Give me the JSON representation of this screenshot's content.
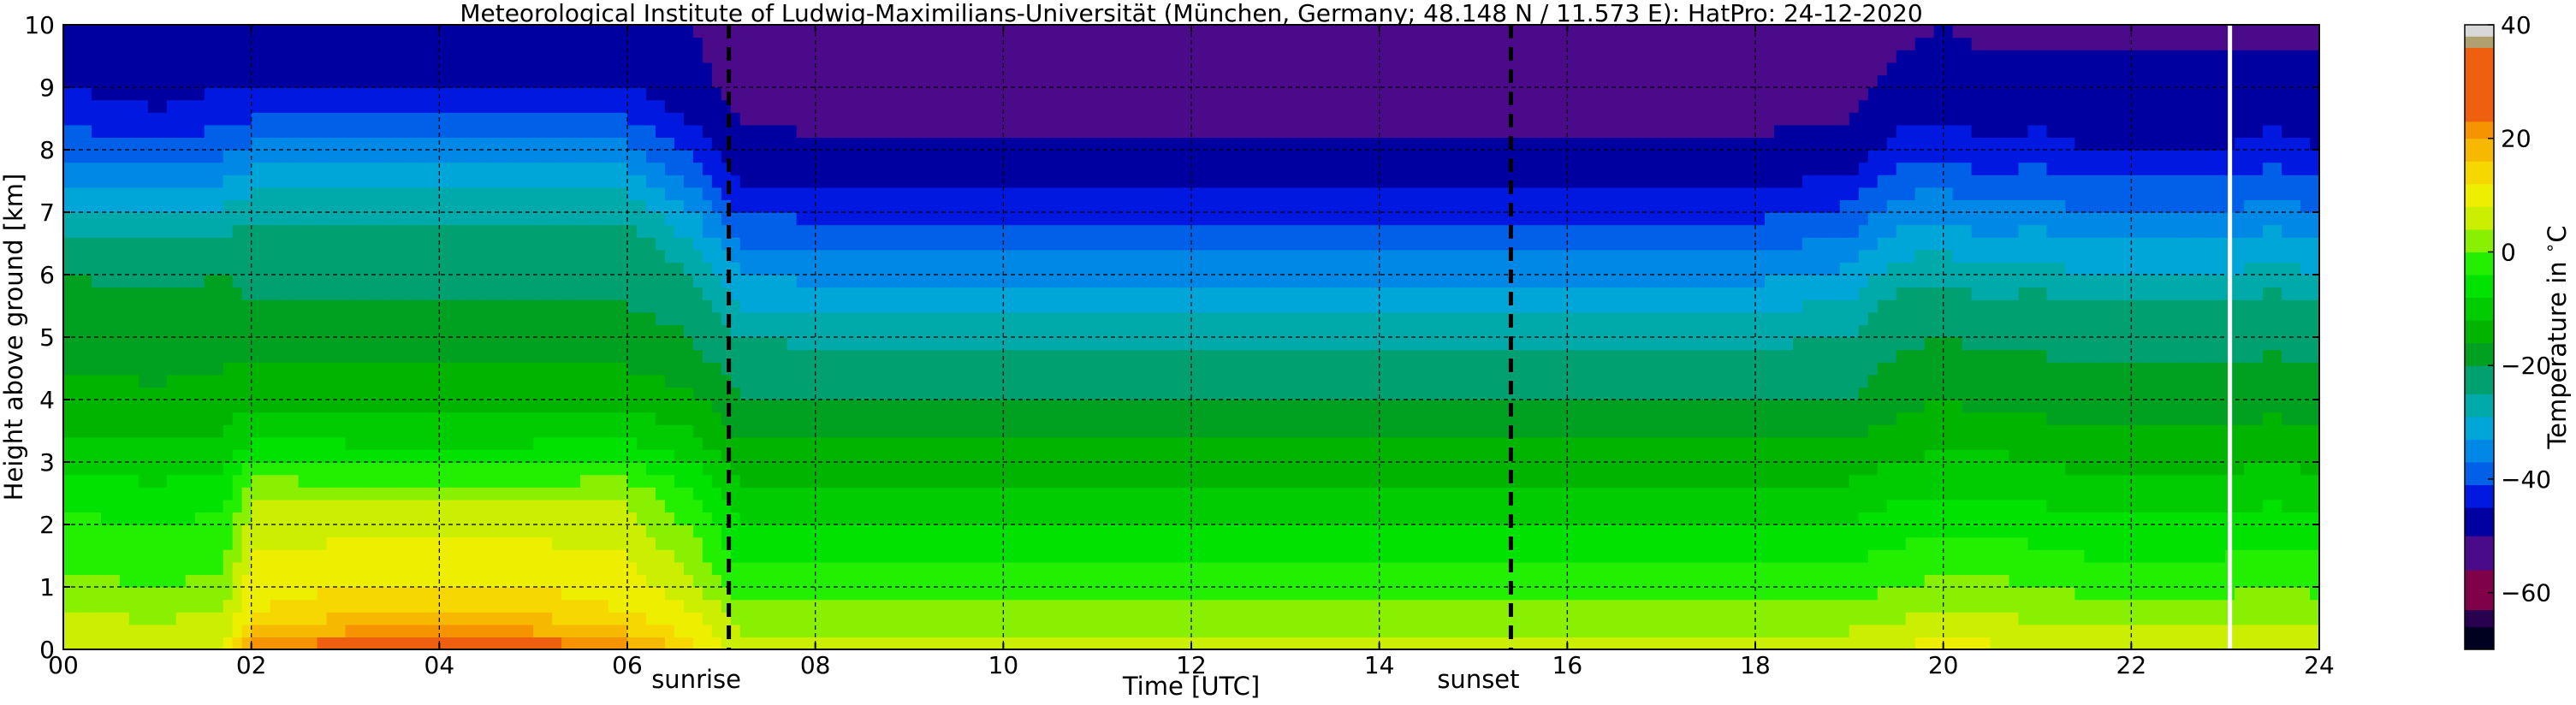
{
  "chart_data": {
    "type": "heatmap",
    "title": "Meteorological Institute of Ludwig-Maximilians-Universität (München, Germany; 48.148 N / 11.573 E):    HatPro: 24-12-2020",
    "xlabel": "Time [UTC]",
    "ylabel": "Height above ground [km]",
    "xlim": [
      0,
      24
    ],
    "ylim": [
      0,
      10
    ],
    "x_ticks": [
      0,
      2,
      4,
      6,
      8,
      10,
      12,
      14,
      16,
      18,
      20,
      22,
      24
    ],
    "x_tick_labels": [
      "00",
      "02",
      "04",
      "06",
      "08",
      "10",
      "12",
      "14",
      "16",
      "18",
      "20",
      "22",
      "24"
    ],
    "y_ticks": [
      0,
      1,
      2,
      3,
      4,
      5,
      6,
      7,
      8,
      9,
      10
    ],
    "y_tick_labels": [
      "0",
      "1",
      "2",
      "3",
      "4",
      "5",
      "6",
      "7",
      "8",
      "9",
      "10"
    ],
    "grid": true,
    "colorbar": {
      "label": "Temperature in $^\\circ$C",
      "range": [
        -70,
        40
      ],
      "ticks": [
        40,
        20,
        0,
        -20,
        -40,
        -60
      ],
      "tick_labels": [
        "40",
        "20",
        "0",
        "−20",
        "−40",
        "−60"
      ],
      "levels": [
        {
          "from": -70,
          "to": -66,
          "color": "#000020"
        },
        {
          "from": -66,
          "to": -63,
          "color": "#2a0050"
        },
        {
          "from": -63,
          "to": -56,
          "color": "#80004a"
        },
        {
          "from": -56,
          "to": -50,
          "color": "#4a0a8a"
        },
        {
          "from": -50,
          "to": -45,
          "color": "#0000a0"
        },
        {
          "from": -45,
          "to": -41,
          "color": "#0018e0"
        },
        {
          "from": -41,
          "to": -37,
          "color": "#0060e8"
        },
        {
          "from": -37,
          "to": -33,
          "color": "#0088e6"
        },
        {
          "from": -33,
          "to": -29,
          "color": "#00a6d8"
        },
        {
          "from": -29,
          "to": -25,
          "color": "#00aaaa"
        },
        {
          "from": -25,
          "to": -20,
          "color": "#00a070"
        },
        {
          "from": -20,
          "to": -16,
          "color": "#00a020"
        },
        {
          "from": -16,
          "to": -12,
          "color": "#00b400"
        },
        {
          "from": -12,
          "to": -8,
          "color": "#00cc00"
        },
        {
          "from": -8,
          "to": -4,
          "color": "#00e200"
        },
        {
          "from": -4,
          "to": 0,
          "color": "#22f000"
        },
        {
          "from": 0,
          "to": 4,
          "color": "#88f000"
        },
        {
          "from": 4,
          "to": 8,
          "color": "#ccee00"
        },
        {
          "from": 8,
          "to": 12,
          "color": "#eeee00"
        },
        {
          "from": 12,
          "to": 16,
          "color": "#f6d800"
        },
        {
          "from": 16,
          "to": 20,
          "color": "#f6b800"
        },
        {
          "from": 20,
          "to": 23,
          "color": "#f69400"
        },
        {
          "from": 23,
          "to": 36,
          "color": "#ee6010"
        },
        {
          "from": 36,
          "to": 38,
          "color": "#b0a070"
        },
        {
          "from": 38,
          "to": 40,
          "color": "#d8d8d8"
        }
      ]
    },
    "annotations": [
      {
        "label": "sunrise",
        "x": 7.08,
        "style": "dashed-black"
      },
      {
        "label": "sunset",
        "x": 15.4,
        "style": "dashed-black"
      }
    ],
    "gap_line": {
      "x": 23.05,
      "color": "#ffffff"
    },
    "time_steps_h": [
      0,
      1,
      1.7,
      2,
      3,
      4,
      5,
      6,
      6.7,
      7.2,
      8,
      10,
      12,
      14,
      16,
      18,
      19,
      19.5,
      20,
      20.5,
      21,
      21.5,
      22,
      22.5,
      23,
      23.5,
      24
    ],
    "height_levels_km": [
      0,
      0.3,
      0.6,
      1,
      1.5,
      2,
      2.5,
      3,
      3.5,
      4,
      4.5,
      5,
      5.5,
      6,
      6.5,
      7,
      7.5,
      8,
      8.5,
      9,
      9.5,
      10
    ],
    "temperature_c": [
      [
        8,
        6,
        4,
        1,
        -1,
        -3,
        -6,
        -9,
        -12,
        -14,
        -16,
        -18,
        -19,
        -20,
        -24,
        -29,
        -33,
        -38,
        -42,
        -45,
        -47,
        -48
      ],
      [
        7,
        5,
        3,
        0,
        -2,
        -4,
        -7,
        -10,
        -13,
        -15,
        -17,
        -19,
        -19,
        -21,
        -25,
        -30,
        -35,
        -40,
        -44,
        -47,
        -48,
        -49
      ],
      [
        8,
        6,
        4,
        1,
        -1,
        -3,
        -6,
        -9,
        -12,
        -14,
        -16,
        -18,
        -19,
        -20,
        -24,
        -28,
        -33,
        -38,
        -42,
        -45,
        -47,
        -48
      ],
      [
        22,
        16,
        12,
        10,
        8,
        6,
        3,
        -4,
        -10,
        -13,
        -16,
        -18,
        -20,
        -21,
        -22,
        -26,
        -31,
        -36,
        -41,
        -45,
        -47,
        -48
      ],
      [
        26,
        20,
        15,
        12,
        9,
        7,
        3,
        -5,
        -10,
        -13,
        -16,
        -18,
        -20,
        -21,
        -22,
        -26,
        -31,
        -36,
        -41,
        -45,
        -47,
        -48
      ],
      [
        27,
        21,
        16,
        12,
        9,
        7,
        3,
        -5,
        -10,
        -13,
        -16,
        -18,
        -20,
        -21,
        -22,
        -26,
        -31,
        -36,
        -41,
        -45,
        -47,
        -48
      ],
      [
        26,
        20,
        15,
        12,
        9,
        7,
        3,
        -5,
        -10,
        -13,
        -16,
        -18,
        -20,
        -21,
        -22,
        -26,
        -31,
        -36,
        -41,
        -45,
        -47,
        -48
      ],
      [
        22,
        16,
        12,
        10,
        8,
        6,
        3,
        -4,
        -10,
        -13,
        -16,
        -18,
        -20,
        -21,
        -22,
        -26,
        -31,
        -36,
        -41,
        -45,
        -47,
        -48
      ],
      [
        14,
        10,
        8,
        5,
        2,
        -1,
        -4,
        -8,
        -12,
        -15,
        -18,
        -20,
        -22,
        -25,
        -29,
        -33,
        -38,
        -42,
        -46,
        -48,
        -49,
        -50
      ],
      [
        6,
        4,
        2,
        -2,
        -5,
        -8,
        -11,
        -14,
        -17,
        -20,
        -22,
        -25,
        -29,
        -33,
        -37,
        -41,
        -45,
        -48,
        -50,
        -52,
        -54,
        -56
      ],
      [
        6,
        4,
        2,
        -2,
        -5,
        -8,
        -11,
        -14,
        -17,
        -20,
        -23,
        -26,
        -30,
        -34,
        -38,
        -42,
        -46,
        -49,
        -51,
        -53,
        -54,
        -56
      ],
      [
        6,
        4,
        2,
        -2,
        -5,
        -8,
        -11,
        -14,
        -17,
        -20,
        -23,
        -26,
        -30,
        -34,
        -38,
        -42,
        -46,
        -49,
        -51,
        -53,
        -54,
        -55
      ],
      [
        6,
        4,
        2,
        -2,
        -5,
        -8,
        -11,
        -14,
        -17,
        -20,
        -23,
        -26,
        -30,
        -34,
        -38,
        -42,
        -46,
        -49,
        -51,
        -53,
        -54,
        -55
      ],
      [
        6,
        4,
        2,
        -2,
        -5,
        -8,
        -11,
        -14,
        -17,
        -20,
        -23,
        -26,
        -30,
        -34,
        -38,
        -42,
        -46,
        -49,
        -51,
        -53,
        -54,
        -55
      ],
      [
        6,
        4,
        2,
        -2,
        -5,
        -8,
        -11,
        -14,
        -17,
        -20,
        -23,
        -26,
        -30,
        -34,
        -38,
        -42,
        -46,
        -49,
        -51,
        -53,
        -54,
        -55
      ],
      [
        6,
        4,
        2,
        -2,
        -5,
        -8,
        -11,
        -14,
        -17,
        -20,
        -23,
        -26,
        -30,
        -34,
        -38,
        -42,
        -46,
        -49,
        -51,
        -53,
        -54,
        -55
      ],
      [
        6,
        4,
        2,
        -2,
        -5,
        -8,
        -11,
        -14,
        -17,
        -20,
        -22,
        -25,
        -28,
        -32,
        -36,
        -40,
        -44,
        -48,
        -50,
        -52,
        -53,
        -54
      ],
      [
        8,
        5,
        3,
        0,
        -3,
        -6,
        -9,
        -12,
        -15,
        -17,
        -19,
        -21,
        -23,
        -27,
        -31,
        -35,
        -39,
        -43,
        -46,
        -48,
        -50,
        -51
      ],
      [
        10,
        7,
        4,
        1,
        -2,
        -5,
        -8,
        -11,
        -14,
        -16,
        -18,
        -20,
        -22,
        -26,
        -30,
        -34,
        -38,
        -42,
        -45,
        -48,
        -49,
        -50
      ],
      [
        9,
        6,
        4,
        1,
        -2,
        -5,
        -8,
        -11,
        -14,
        -17,
        -19,
        -21,
        -24,
        -28,
        -32,
        -36,
        -40,
        -44,
        -47,
        -49,
        -50,
        -51
      ],
      [
        8,
        5,
        3,
        0,
        -3,
        -6,
        -9,
        -12,
        -15,
        -17,
        -19,
        -21,
        -23,
        -27,
        -31,
        -35,
        -39,
        -43,
        -46,
        -48,
        -50,
        -51
      ],
      [
        7,
        5,
        2,
        -1,
        -4,
        -7,
        -10,
        -13,
        -16,
        -18,
        -20,
        -22,
        -25,
        -29,
        -33,
        -37,
        -41,
        -45,
        -47,
        -49,
        -50,
        -51
      ],
      [
        7,
        5,
        2,
        -1,
        -4,
        -7,
        -10,
        -13,
        -16,
        -18,
        -20,
        -22,
        -25,
        -29,
        -33,
        -37,
        -41,
        -45,
        -47,
        -49,
        -50,
        -51
      ],
      [
        7,
        5,
        2,
        -1,
        -4,
        -7,
        -10,
        -13,
        -16,
        -18,
        -20,
        -22,
        -25,
        -29,
        -33,
        -37,
        -41,
        -45,
        -47,
        -49,
        -50,
        -51
      ],
      [
        7,
        5,
        2,
        -1,
        -4,
        -7,
        -10,
        -13,
        -16,
        -18,
        -20,
        -22,
        -25,
        -29,
        -33,
        -37,
        -41,
        -45,
        -47,
        -49,
        -50,
        -51
      ],
      [
        8,
        5,
        3,
        0,
        -3,
        -6,
        -9,
        -12,
        -15,
        -17,
        -19,
        -21,
        -23,
        -27,
        -31,
        -35,
        -39,
        -43,
        -46,
        -48,
        -50,
        -51
      ],
      [
        7,
        5,
        2,
        -1,
        -4,
        -7,
        -10,
        -13,
        -16,
        -18,
        -20,
        -22,
        -25,
        -29,
        -33,
        -37,
        -41,
        -45,
        -47,
        -49,
        -50,
        -51
      ]
    ]
  }
}
